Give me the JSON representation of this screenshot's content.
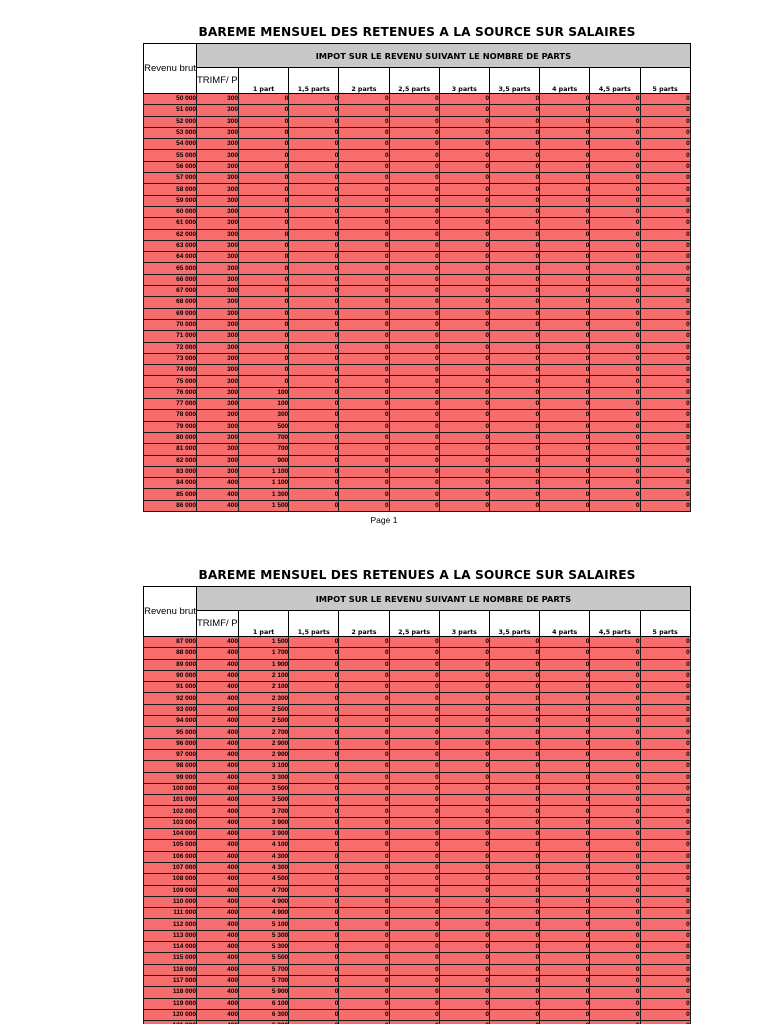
{
  "title": "BAREME MENSUEL DES RETENUES A LA SOURCE SUR SALAIRES",
  "headers": {
    "revenu": "Revenu brut",
    "group": "IMPOT SUR LE REVENU SUIVANT LE NOMBRE DE PARTS",
    "trimf": "TRIMF/ Pers",
    "parts": [
      "1 part",
      "1,5 parts",
      "2 parts",
      "2,5 parts",
      "3 parts",
      "3,5 parts",
      "4 parts",
      "4,5 parts",
      "5 parts"
    ]
  },
  "page_label": "Page 1",
  "colors": {
    "cell_fill": "#f76d6d",
    "header_fill": "#c8c8c8"
  },
  "page1_rows": [
    [
      "50 000",
      "300",
      "0"
    ],
    [
      "51 000",
      "300",
      "0"
    ],
    [
      "52 000",
      "300",
      "0"
    ],
    [
      "53 000",
      "300",
      "0"
    ],
    [
      "54 000",
      "300",
      "0"
    ],
    [
      "55 000",
      "300",
      "0"
    ],
    [
      "56 000",
      "300",
      "0"
    ],
    [
      "57 000",
      "300",
      "0"
    ],
    [
      "58 000",
      "300",
      "0"
    ],
    [
      "59 000",
      "300",
      "0"
    ],
    [
      "60 000",
      "300",
      "0"
    ],
    [
      "61 000",
      "300",
      "0"
    ],
    [
      "62 000",
      "300",
      "0"
    ],
    [
      "63 000",
      "300",
      "0"
    ],
    [
      "64 000",
      "300",
      "0"
    ],
    [
      "65 000",
      "300",
      "0"
    ],
    [
      "66 000",
      "300",
      "0"
    ],
    [
      "67 000",
      "300",
      "0"
    ],
    [
      "68 000",
      "300",
      "0"
    ],
    [
      "69 000",
      "300",
      "0"
    ],
    [
      "70 000",
      "300",
      "0"
    ],
    [
      "71 000",
      "300",
      "0"
    ],
    [
      "72 000",
      "300",
      "0"
    ],
    [
      "73 000",
      "300",
      "0"
    ],
    [
      "74 000",
      "300",
      "0"
    ],
    [
      "75 000",
      "300",
      "0"
    ],
    [
      "76 000",
      "300",
      "100"
    ],
    [
      "77 000",
      "300",
      "100"
    ],
    [
      "78 000",
      "300",
      "300"
    ],
    [
      "79 000",
      "300",
      "500"
    ],
    [
      "80 000",
      "300",
      "700"
    ],
    [
      "81 000",
      "300",
      "700"
    ],
    [
      "82 000",
      "300",
      "900"
    ],
    [
      "83 000",
      "300",
      "1 100"
    ],
    [
      "84 000",
      "400",
      "1 100"
    ],
    [
      "85 000",
      "400",
      "1 300"
    ],
    [
      "86 000",
      "400",
      "1 500"
    ]
  ],
  "page2_rows": [
    [
      "87 000",
      "400",
      "1 500"
    ],
    [
      "88 000",
      "400",
      "1 700"
    ],
    [
      "89 000",
      "400",
      "1 900"
    ],
    [
      "90 000",
      "400",
      "2 100"
    ],
    [
      "91 000",
      "400",
      "2 100"
    ],
    [
      "92 000",
      "400",
      "2 300"
    ],
    [
      "93 000",
      "400",
      "2 500"
    ],
    [
      "94 000",
      "400",
      "2 500"
    ],
    [
      "95 000",
      "400",
      "2 700"
    ],
    [
      "96 000",
      "400",
      "2 900"
    ],
    [
      "97 000",
      "400",
      "2 900"
    ],
    [
      "98 000",
      "400",
      "3 100"
    ],
    [
      "99 000",
      "400",
      "3 300"
    ],
    [
      "100 000",
      "400",
      "3 500"
    ],
    [
      "101 000",
      "400",
      "3 500"
    ],
    [
      "102 000",
      "400",
      "3 700"
    ],
    [
      "103 000",
      "400",
      "3 900"
    ],
    [
      "104 000",
      "400",
      "3 900"
    ],
    [
      "105 000",
      "400",
      "4 100"
    ],
    [
      "106 000",
      "400",
      "4 300"
    ],
    [
      "107 000",
      "400",
      "4 300"
    ],
    [
      "108 000",
      "400",
      "4 500"
    ],
    [
      "109 000",
      "400",
      "4 700"
    ],
    [
      "110 000",
      "400",
      "4 900"
    ],
    [
      "111 000",
      "400",
      "4 900"
    ],
    [
      "112 000",
      "400",
      "5 100"
    ],
    [
      "113 000",
      "400",
      "5 300"
    ],
    [
      "114 000",
      "400",
      "5 300"
    ],
    [
      "115 000",
      "400",
      "5 500"
    ],
    [
      "116 000",
      "400",
      "5 700"
    ],
    [
      "117 000",
      "400",
      "5 700"
    ],
    [
      "118 000",
      "400",
      "5 900"
    ],
    [
      "119 000",
      "400",
      "6 100"
    ],
    [
      "120 000",
      "400",
      "6 300"
    ],
    [
      "121 000",
      "400",
      "6 300"
    ]
  ],
  "other_parts_value": "0"
}
